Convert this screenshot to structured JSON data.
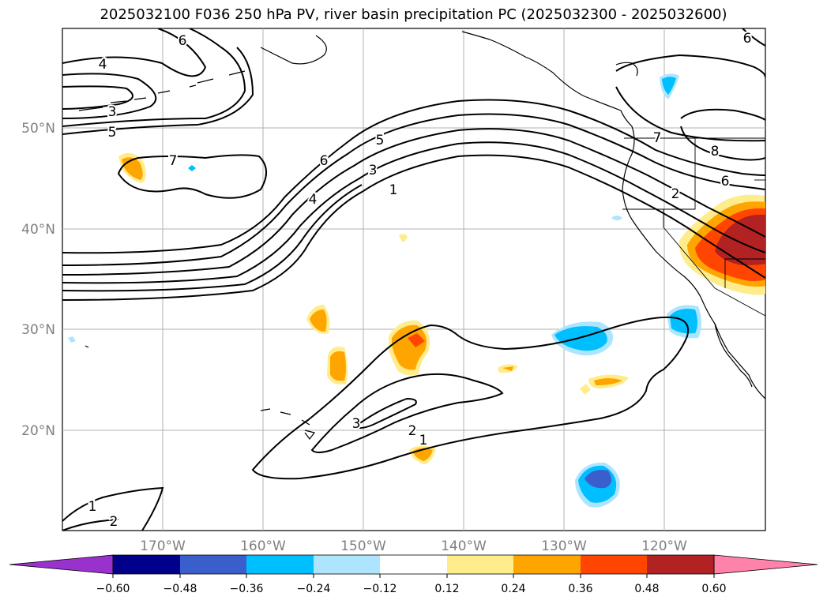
{
  "title": "2025032100 F036 250 hPa PV, river basin precipitation PC (2025032300 - 2025032600)",
  "lat_labels": [
    "50°N",
    "40°N",
    "30°N",
    "20°N"
  ],
  "lon_labels": [
    "170°W",
    "160°W",
    "150°W",
    "140°W",
    "130°W",
    "120°W"
  ],
  "contour_labels": [
    "6",
    "4",
    "3",
    "5",
    "7",
    "6",
    "5",
    "4",
    "3",
    "1",
    "2",
    "8",
    "6",
    "7",
    "6",
    "3",
    "2",
    "1",
    "1",
    "2"
  ],
  "colorbar": {
    "colors": [
      "#9932cc",
      "#00008b",
      "#3a5fcd",
      "#00bfff",
      "#ade5ff",
      "#ffffff",
      "#ffec8b",
      "#ffa500",
      "#ff4500",
      "#b22222",
      "#ff82ab"
    ],
    "ticks": [
      "−0.60",
      "−0.48",
      "−0.36",
      "−0.24",
      "−0.12",
      "0.12",
      "0.24",
      "0.36",
      "0.48",
      "0.60"
    ]
  }
}
